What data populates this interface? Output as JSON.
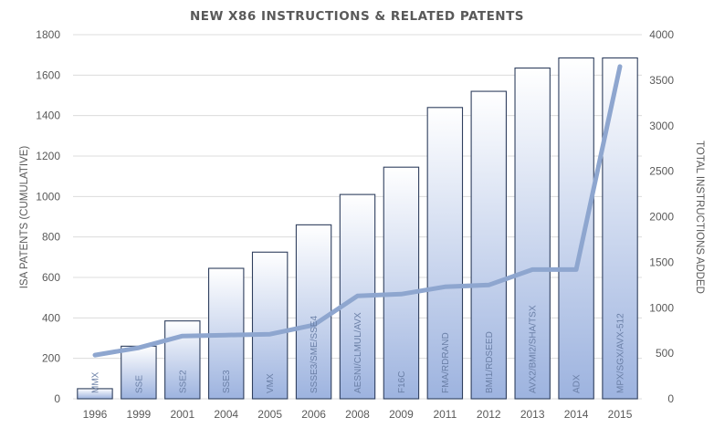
{
  "chart_data": {
    "type": "bar",
    "title": "NEW X86 INSTRUCTIONS  &  RELATED PATENTS",
    "categories": [
      "1996",
      "1999",
      "2001",
      "2004",
      "2005",
      "2006",
      "2008",
      "2009",
      "2011",
      "2012",
      "2013",
      "2014",
      "2015"
    ],
    "bar_labels": [
      "MMX",
      "SSE",
      "SSE2",
      "SSE3",
      "VMX",
      "SSSE3/SME/SSE4",
      "AESNI/CLMUL/AVX",
      "F16C",
      "FMA/RDRAND",
      "BMI1/RDSEED",
      "AVX2/BMI2/SHA/TSX",
      "ADX",
      "MPX/SGX/AVX-512"
    ],
    "series": [
      {
        "name": "",
        "axis": "left",
        "type": "bar",
        "values": [
          50,
          260,
          385,
          645,
          725,
          860,
          1010,
          1145,
          1440,
          1520,
          1635,
          1685,
          1685
        ]
      },
      {
        "name": "",
        "axis": "right",
        "type": "line",
        "values": [
          480,
          560,
          690,
          700,
          710,
          810,
          1130,
          1150,
          1230,
          1250,
          1420,
          1420,
          3650
        ]
      }
    ],
    "ylabel": "ISA PATENTS (CUMULATIVE)",
    "y2label": "TOTAL INSTRUCTIONS ADDED",
    "ylim": [
      0,
      1800
    ],
    "y2lim": [
      0,
      4000
    ],
    "yticks": [
      "0",
      "200",
      "400",
      "600",
      "800",
      "1000",
      "1200",
      "1400",
      "1600",
      "1800"
    ],
    "y2ticks": [
      "0",
      "500",
      "1000",
      "1500",
      "2000",
      "2500",
      "3000",
      "3500",
      "4000"
    ],
    "grid": true,
    "colors": {
      "bar_top": "#ffffff",
      "bar_bottom": "#9db3df",
      "bar_edge": "#2f3f5e",
      "line": "#8ea6cf",
      "grid": "#dcdcdc",
      "text": "#595959",
      "bar_text": "#6a7fa6"
    }
  }
}
